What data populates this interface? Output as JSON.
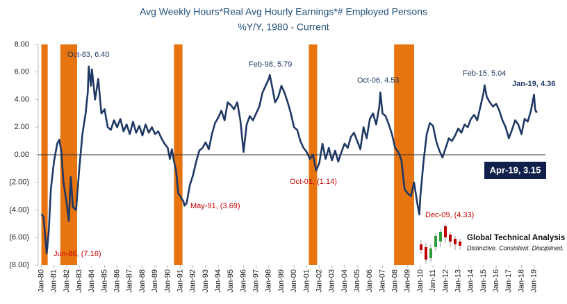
{
  "chart_data": {
    "type": "line",
    "title": "Avg Weekly Hours*Real Avg Hourly Earnings*# Employed Persons",
    "subtitle": "%Y/Y, 1980 - Current",
    "color": "#1f3864",
    "recession_color": "#e8740f",
    "recessions": [
      [
        1980.0,
        1980.5
      ],
      [
        1981.5,
        1982.83
      ],
      [
        1990.5,
        1991.17
      ],
      [
        2001.17,
        2001.83
      ],
      [
        2007.92,
        2009.5
      ]
    ],
    "x": [
      1980.0,
      1980.17,
      1980.42,
      1980.58,
      1980.75,
      1981.0,
      1981.25,
      1981.42,
      1981.58,
      1981.75,
      1982.0,
      1982.17,
      1982.33,
      1982.5,
      1982.75,
      1983.0,
      1983.25,
      1983.5,
      1983.67,
      1983.75,
      1983.92,
      1984.0,
      1984.25,
      1984.5,
      1984.75,
      1985.0,
      1985.25,
      1985.5,
      1985.75,
      1986.0,
      1986.25,
      1986.5,
      1986.75,
      1987.0,
      1987.25,
      1987.5,
      1987.75,
      1988.0,
      1988.25,
      1988.5,
      1988.75,
      1989.0,
      1989.25,
      1989.5,
      1989.75,
      1990.0,
      1990.17,
      1990.33,
      1990.5,
      1990.67,
      1990.83,
      1991.0,
      1991.25,
      1991.33,
      1991.5,
      1991.75,
      1992.0,
      1992.25,
      1992.5,
      1992.75,
      1993.0,
      1993.25,
      1993.5,
      1993.75,
      1994.0,
      1994.25,
      1994.5,
      1994.75,
      1995.0,
      1995.25,
      1995.5,
      1995.75,
      1996.0,
      1996.25,
      1996.5,
      1996.75,
      1997.0,
      1997.25,
      1997.5,
      1997.75,
      1998.0,
      1998.08,
      1998.25,
      1998.5,
      1998.75,
      1999.0,
      1999.25,
      1999.5,
      1999.75,
      2000.0,
      2000.25,
      2000.5,
      2000.75,
      2001.0,
      2001.25,
      2001.5,
      2001.75,
      2002.0,
      2002.25,
      2002.5,
      2002.75,
      2003.0,
      2003.25,
      2003.5,
      2003.75,
      2004.0,
      2004.25,
      2004.5,
      2004.75,
      2005.0,
      2005.25,
      2005.5,
      2005.75,
      2006.0,
      2006.25,
      2006.5,
      2006.75,
      2006.83,
      2007.0,
      2007.25,
      2007.5,
      2007.75,
      2008.0,
      2008.25,
      2008.5,
      2008.75,
      2009.0,
      2009.25,
      2009.5,
      2009.75,
      2009.92,
      2010.0,
      2010.25,
      2010.5,
      2010.75,
      2011.0,
      2011.25,
      2011.5,
      2011.75,
      2012.0,
      2012.25,
      2012.5,
      2012.75,
      2013.0,
      2013.25,
      2013.5,
      2013.75,
      2014.0,
      2014.25,
      2014.5,
      2014.75,
      2015.0,
      2015.08,
      2015.25,
      2015.5,
      2015.75,
      2016.0,
      2016.25,
      2016.5,
      2016.75,
      2017.0,
      2017.25,
      2017.5,
      2017.75,
      2018.0,
      2018.25,
      2018.5,
      2018.75,
      2019.0,
      2019.08,
      2019.17,
      2019.25
    ],
    "values": [
      -4.3,
      -4.5,
      -7.16,
      -5.6,
      -2.5,
      -0.5,
      0.8,
      1.1,
      0.2,
      -2.0,
      -3.5,
      -4.8,
      -1.6,
      -3.8,
      -4.0,
      -1.0,
      1.5,
      3.0,
      4.5,
      6.4,
      5.0,
      6.2,
      4.0,
      5.5,
      3.0,
      3.3,
      2.0,
      1.8,
      2.5,
      2.0,
      2.6,
      1.7,
      2.2,
      1.5,
      2.4,
      1.6,
      2.1,
      1.4,
      2.2,
      1.6,
      2.0,
      1.5,
      1.7,
      1.2,
      0.8,
      0.5,
      -0.3,
      0.4,
      -0.5,
      -1.2,
      -2.8,
      -3.0,
      -3.4,
      -3.69,
      -3.5,
      -2.2,
      -1.5,
      -0.5,
      0.3,
      0.5,
      0.9,
      0.4,
      1.5,
      2.3,
      2.7,
      3.2,
      2.5,
      3.8,
      3.6,
      3.3,
      3.8,
      2.5,
      0.2,
      2.2,
      2.8,
      2.5,
      3.0,
      3.5,
      4.5,
      5.0,
      5.5,
      5.79,
      5.0,
      3.8,
      4.2,
      5.0,
      4.5,
      3.8,
      3.0,
      2.0,
      1.8,
      1.0,
      0.5,
      0.2,
      -0.3,
      0.0,
      -1.14,
      -0.6,
      0.8,
      -0.3,
      0.5,
      -0.4,
      0.3,
      -0.5,
      0.2,
      0.8,
      0.5,
      1.3,
      1.6,
      1.0,
      0.4,
      2.0,
      1.2,
      2.6,
      3.0,
      2.2,
      3.5,
      4.53,
      3.0,
      2.8,
      2.2,
      1.5,
      0.5,
      0.2,
      -0.4,
      -2.5,
      -2.8,
      -3.0,
      -2.0,
      -3.5,
      -4.33,
      -3.0,
      -0.5,
      1.5,
      2.3,
      2.1,
      1.0,
      0.3,
      -0.2,
      0.5,
      1.2,
      1.0,
      1.4,
      1.9,
      1.6,
      2.2,
      2.0,
      2.6,
      2.9,
      2.5,
      3.5,
      4.5,
      5.04,
      4.2,
      3.8,
      3.5,
      3.7,
      3.2,
      2.5,
      2.0,
      1.2,
      1.8,
      2.5,
      2.2,
      1.5,
      2.6,
      2.4,
      3.2,
      4.36,
      3.3,
      3.1,
      3.15
    ],
    "xlim": [
      1979.75,
      2019.9
    ],
    "ylim": [
      -8,
      8
    ],
    "yticks": [
      {
        "value": 8,
        "label": "8.00"
      },
      {
        "value": 6,
        "label": "6.00"
      },
      {
        "value": 4,
        "label": "4.00"
      },
      {
        "value": 2,
        "label": "2.00"
      },
      {
        "value": 0,
        "label": "0.00"
      },
      {
        "value": -2,
        "label": "(2.00)"
      },
      {
        "value": -4,
        "label": "(4.00)"
      },
      {
        "value": -6,
        "label": "(6.00)"
      },
      {
        "value": -8,
        "label": "(8.00)"
      }
    ],
    "xticks": [
      {
        "value": 1980,
        "label": "Jan-80"
      },
      {
        "value": 1981,
        "label": "Jan-81"
      },
      {
        "value": 1982,
        "label": "Jan-82"
      },
      {
        "value": 1983,
        "label": "Jan-83"
      },
      {
        "value": 1984,
        "label": "Jan-84"
      },
      {
        "value": 1985,
        "label": "Jan-85"
      },
      {
        "value": 1986,
        "label": "Jan-86"
      },
      {
        "value": 1987,
        "label": "Jan-87"
      },
      {
        "value": 1988,
        "label": "Jan-88"
      },
      {
        "value": 1989,
        "label": "Jan-89"
      },
      {
        "value": 1990,
        "label": "Jan-90"
      },
      {
        "value": 1991,
        "label": "Jan-91"
      },
      {
        "value": 1992,
        "label": "Jan-92"
      },
      {
        "value": 1993,
        "label": "Jan-93"
      },
      {
        "value": 1994,
        "label": "Jan-94"
      },
      {
        "value": 1995,
        "label": "Jan-95"
      },
      {
        "value": 1996,
        "label": "Jan-96"
      },
      {
        "value": 1997,
        "label": "Jan-97"
      },
      {
        "value": 1998,
        "label": "Jan-98"
      },
      {
        "value": 1999,
        "label": "Jan-99"
      },
      {
        "value": 2000,
        "label": "Jan-00"
      },
      {
        "value": 2001,
        "label": "Jan-01"
      },
      {
        "value": 2002,
        "label": "Jan-02"
      },
      {
        "value": 2003,
        "label": "Jan-03"
      },
      {
        "value": 2004,
        "label": "Jan-04"
      },
      {
        "value": 2005,
        "label": "Jan-05"
      },
      {
        "value": 2006,
        "label": "Jan-06"
      },
      {
        "value": 2007,
        "label": "Jan-07"
      },
      {
        "value": 2008,
        "label": "Jan-08"
      },
      {
        "value": 2009,
        "label": "Jan-09"
      },
      {
        "value": 2010,
        "label": "Jan-10"
      },
      {
        "value": 2011,
        "label": "Jan-11"
      },
      {
        "value": 2012,
        "label": "Jan-12"
      },
      {
        "value": 2013,
        "label": "Jan-13"
      },
      {
        "value": 2014,
        "label": "Jan-14"
      },
      {
        "value": 2015,
        "label": "Jan-15"
      },
      {
        "value": 2016,
        "label": "Jan-16"
      },
      {
        "value": 2017,
        "label": "Jan-17"
      },
      {
        "value": 2018,
        "label": "Jan-18"
      },
      {
        "value": 2019,
        "label": "Jan-19"
      }
    ],
    "annotations": [
      "Oct-83, 6.40",
      "Feb-98, 5.79",
      "Oct-06, 4.53",
      "Feb-15, 5.04",
      "Jan-19, 4.36",
      "May-91, (3.69)",
      "Oct-01, (1.14)",
      "Dec-09, (4.33)",
      "Jun-80, (7.16)",
      "Apr-19, 3.15"
    ],
    "logo": {
      "name": "Global Technical Analysis",
      "tagline": "Distinctive. Consistent. Disciplined."
    }
  }
}
